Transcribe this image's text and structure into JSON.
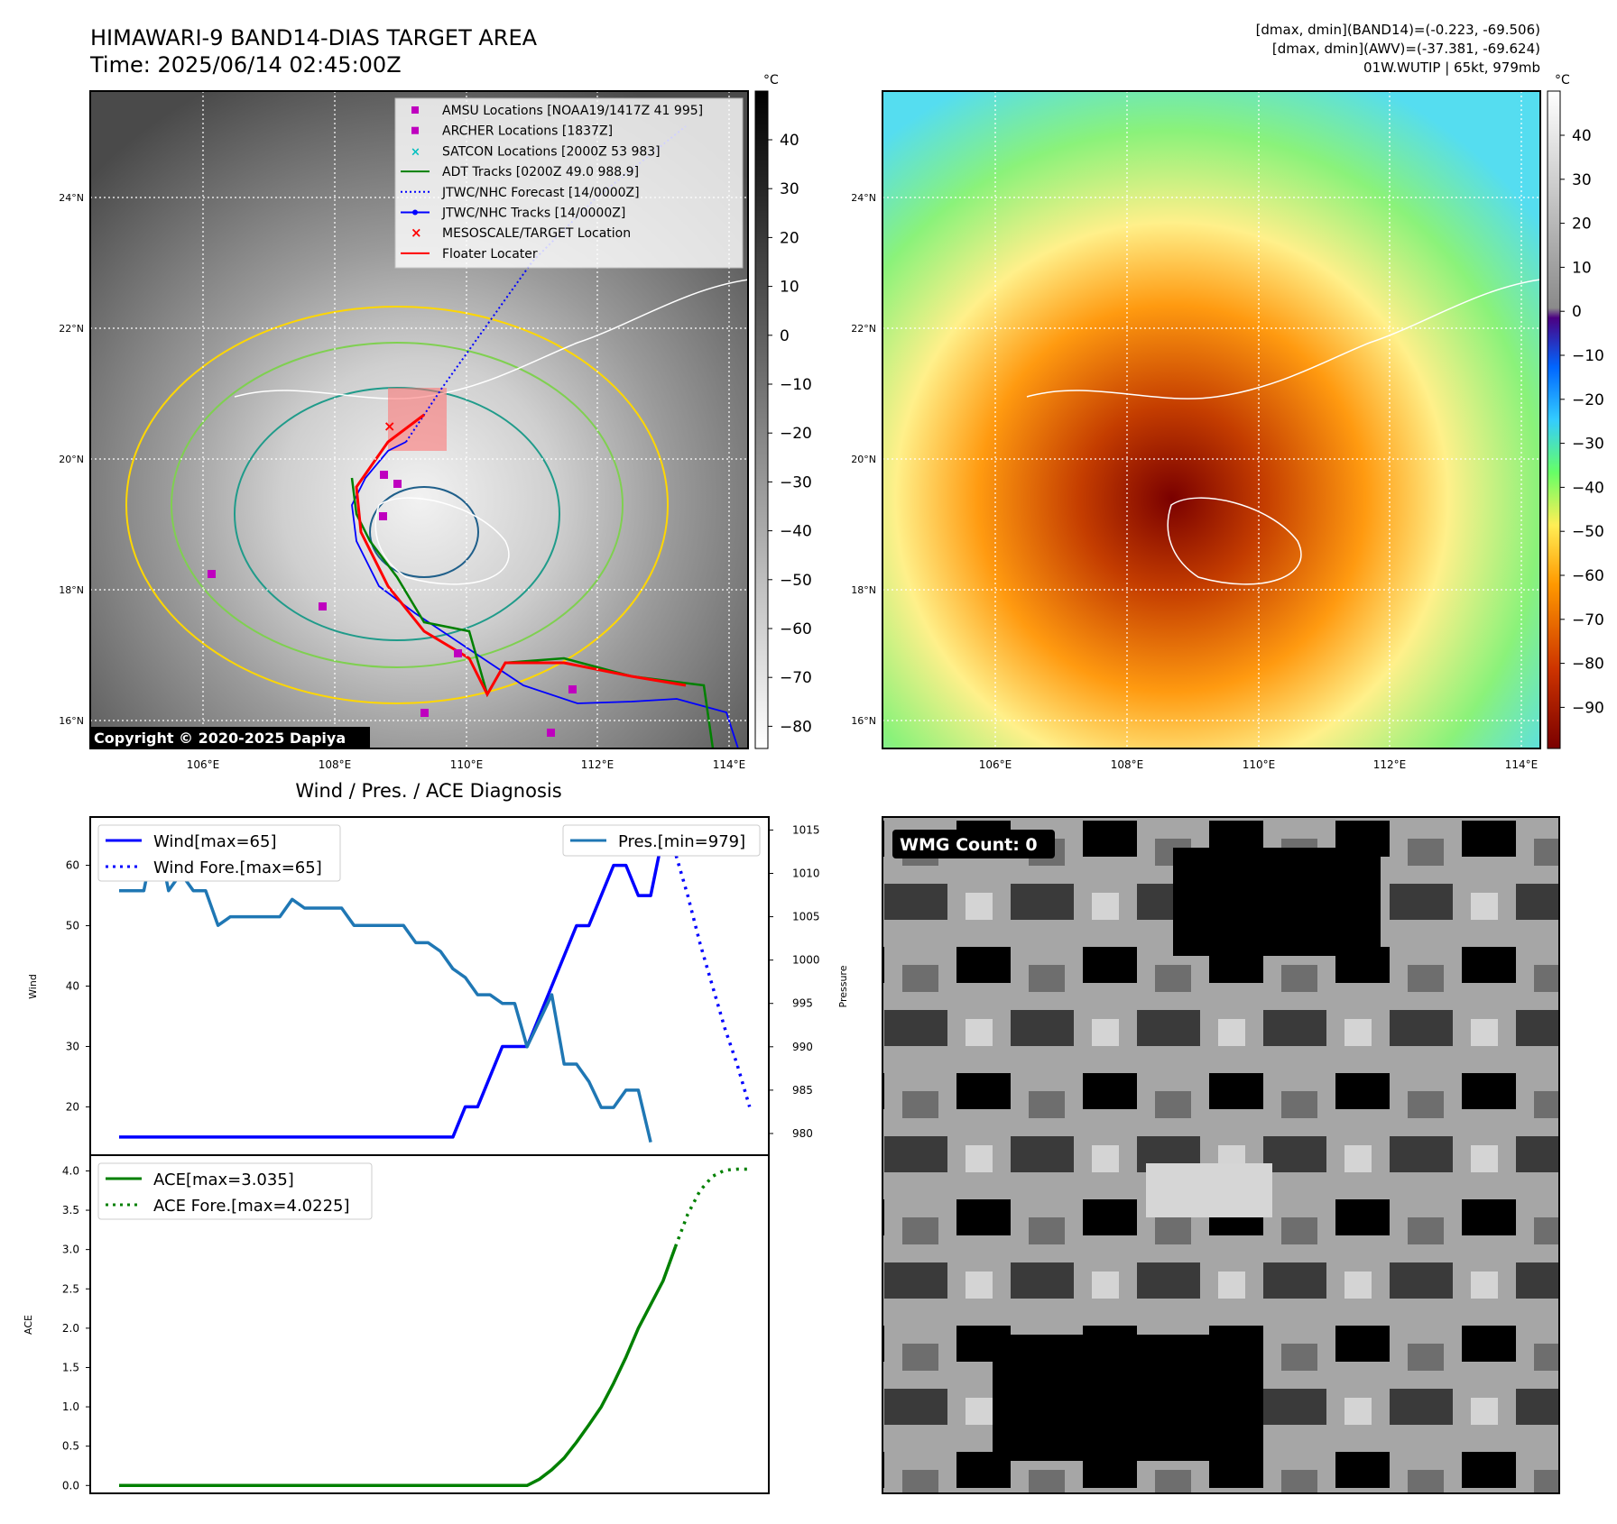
{
  "header": {
    "title_line1": "HIMAWARI-9 BAND14-DIAS TARGET AREA",
    "title_line2": "Time: 2025/06/14 02:45:00Z",
    "info_line1": "[dmax, dmin](BAND14)=(-0.223, -69.506)",
    "info_line2": "[dmax, dmin](AWV)=(-37.381, -69.624)",
    "info_line3": "01W.WUTIP | 65kt, 979mb"
  },
  "map": {
    "lon_ticks": [
      "106°E",
      "108°E",
      "110°E",
      "112°E",
      "114°E"
    ],
    "lat_ticks": [
      "24°N",
      "22°N",
      "20°N",
      "18°N",
      "16°N"
    ],
    "copyright": "Copyright © 2020-2025 Dapiya",
    "colorbar_unit": "°C",
    "colorbar1_ticks": [
      "40",
      "30",
      "20",
      "10",
      "0",
      "−10",
      "−20",
      "−30",
      "−40",
      "−50",
      "−60",
      "−70",
      "−80"
    ],
    "colorbar2_ticks": [
      "40",
      "30",
      "20",
      "10",
      "0",
      "−10",
      "−20",
      "−30",
      "−40",
      "−50",
      "−60",
      "−70",
      "−80",
      "−90"
    ]
  },
  "legend": [
    {
      "label": "AMSU Locations [NOAA19/1417Z 41 995]",
      "color": "#bf00bf",
      "kind": "square"
    },
    {
      "label": "ARCHER Locations [1837Z]",
      "color": "#bf00bf",
      "kind": "square"
    },
    {
      "label": "SATCON Locations [2000Z 53 983]",
      "color": "#00bfbf",
      "kind": "x"
    },
    {
      "label": "ADT Tracks [0200Z 49.0 988.9]",
      "color": "#008000",
      "kind": "line"
    },
    {
      "label": "JTWC/NHC Forecast [14/0000Z]",
      "color": "#0000ff",
      "kind": "dotted"
    },
    {
      "label": "JTWC/NHC Tracks [14/0000Z]",
      "color": "#0000ff",
      "kind": "linedot"
    },
    {
      "label": "MESOSCALE/TARGET Location",
      "color": "#ff0000",
      "kind": "redx"
    },
    {
      "label": "Floater Locater",
      "color": "#ff0000",
      "kind": "line"
    }
  ],
  "wmg": {
    "label": "WMG Count: 0"
  },
  "chart_data": [
    {
      "type": "line",
      "title": "Wind / Pres. / ACE Diagnosis",
      "ylabel": "Wind",
      "ylabel_right": "Pressure",
      "ylim": [
        12,
        68
      ],
      "ylim_right": [
        977.5,
        1016.5
      ],
      "yticks": [
        "20",
        "30",
        "40",
        "50",
        "60"
      ],
      "yticks_right": [
        "980",
        "985",
        "990",
        "995",
        "1000",
        "1005",
        "1010",
        "1015"
      ],
      "series": [
        {
          "name": "Wind[max=65]",
          "color": "#0000ff",
          "style": "solid",
          "axis": "left",
          "values": [
            15,
            15,
            15,
            15,
            15,
            15,
            15,
            15,
            15,
            15,
            15,
            15,
            15,
            15,
            15,
            15,
            15,
            15,
            15,
            15,
            15,
            15,
            15,
            15,
            15,
            15,
            15,
            15,
            20,
            20,
            25,
            30,
            30,
            30,
            35,
            40,
            45,
            50,
            50,
            55,
            60,
            60,
            55,
            55,
            65
          ]
        },
        {
          "name": "Wind Fore.[max=65]",
          "color": "#0000ff",
          "style": "dotted",
          "axis": "left",
          "x_start": 44,
          "values": [
            65,
            62,
            55,
            47,
            40,
            33,
            27,
            20
          ]
        },
        {
          "name": "Pres.[min=979]",
          "color": "#1f77b4",
          "style": "solid",
          "axis": "right",
          "values": [
            1008,
            1008,
            1008,
            1015,
            1008,
            1010,
            1008,
            1008,
            1004,
            1005,
            1005,
            1005,
            1005,
            1005,
            1007,
            1006,
            1006,
            1006,
            1006,
            1004,
            1004,
            1004,
            1004,
            1004,
            1002,
            1002,
            1001,
            999,
            998,
            996,
            996,
            995,
            995,
            990,
            993,
            996,
            988,
            988,
            986,
            983,
            983,
            985,
            985,
            979
          ]
        }
      ]
    },
    {
      "type": "line",
      "ylabel": "ACE",
      "ylim": [
        -0.1,
        4.2
      ],
      "yticks": [
        "0.0",
        "0.5",
        "1.0",
        "1.5",
        "2.0",
        "2.5",
        "3.0",
        "3.5",
        "4.0"
      ],
      "series": [
        {
          "name": "ACE[max=3.035]",
          "color": "#008000",
          "style": "solid",
          "values": [
            0,
            0,
            0,
            0,
            0,
            0,
            0,
            0,
            0,
            0,
            0,
            0,
            0,
            0,
            0,
            0,
            0,
            0,
            0,
            0,
            0,
            0,
            0,
            0,
            0,
            0,
            0,
            0,
            0,
            0,
            0,
            0,
            0,
            0,
            0.08,
            0.2,
            0.35,
            0.55,
            0.77,
            1.0,
            1.3,
            1.63,
            2.0,
            2.3,
            2.6,
            3.035
          ]
        },
        {
          "name": "ACE Fore.[max=4.0225]",
          "color": "#008000",
          "style": "dotted",
          "x_start": 45,
          "values": [
            3.035,
            3.45,
            3.75,
            3.93,
            4.01,
            4.0225,
            4.0225
          ]
        }
      ]
    }
  ]
}
